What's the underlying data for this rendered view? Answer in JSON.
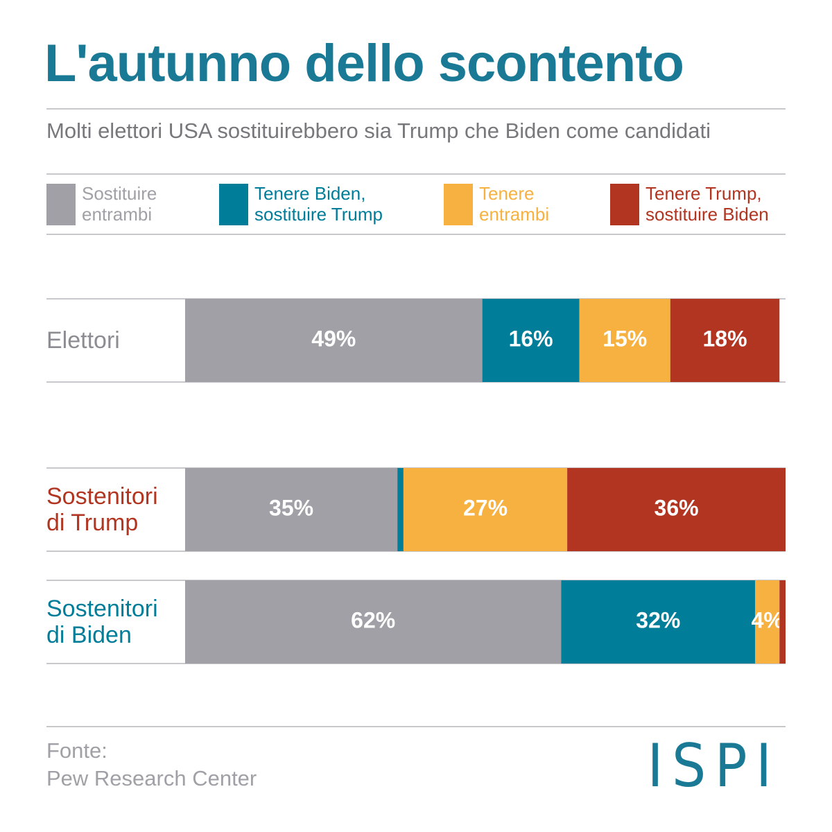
{
  "chart_data": {
    "type": "stacked-bar-horizontal",
    "title": "L'autunno dello scontento",
    "subtitle": "Molti elettori USA sostituirebbero sia Trump che Biden come candidati",
    "categories": [
      "Elettori",
      "Sostenitori di Trump",
      "Sostenitori di Biden"
    ],
    "category_colors": [
      "#8c8c92",
      "#b13520",
      "#007d99"
    ],
    "series": [
      {
        "name": "Sostituire entrambi",
        "color": "#a0a0a6",
        "values": [
          49,
          35,
          62
        ],
        "value_labels": [
          "49%",
          "35%",
          "62%"
        ]
      },
      {
        "name": "Tenere Biden, sostituire Trump",
        "color": "#007d99",
        "values": [
          16,
          1,
          32
        ],
        "value_labels": [
          "16%",
          null,
          "32%"
        ]
      },
      {
        "name": "Tenere entrambi",
        "color": "#f6b140",
        "values": [
          15,
          27,
          4
        ],
        "value_labels": [
          "15%",
          "27%",
          "4%"
        ]
      },
      {
        "name": "Tenere Trump, sostituire Biden",
        "color": "#b13520",
        "values": [
          18,
          36,
          1
        ],
        "value_labels": [
          "18%",
          "36%",
          null
        ]
      }
    ],
    "xlim": [
      0,
      99
    ],
    "source_label": "Fonte:",
    "source": "Pew Research Center",
    "logo": "ISPI"
  }
}
